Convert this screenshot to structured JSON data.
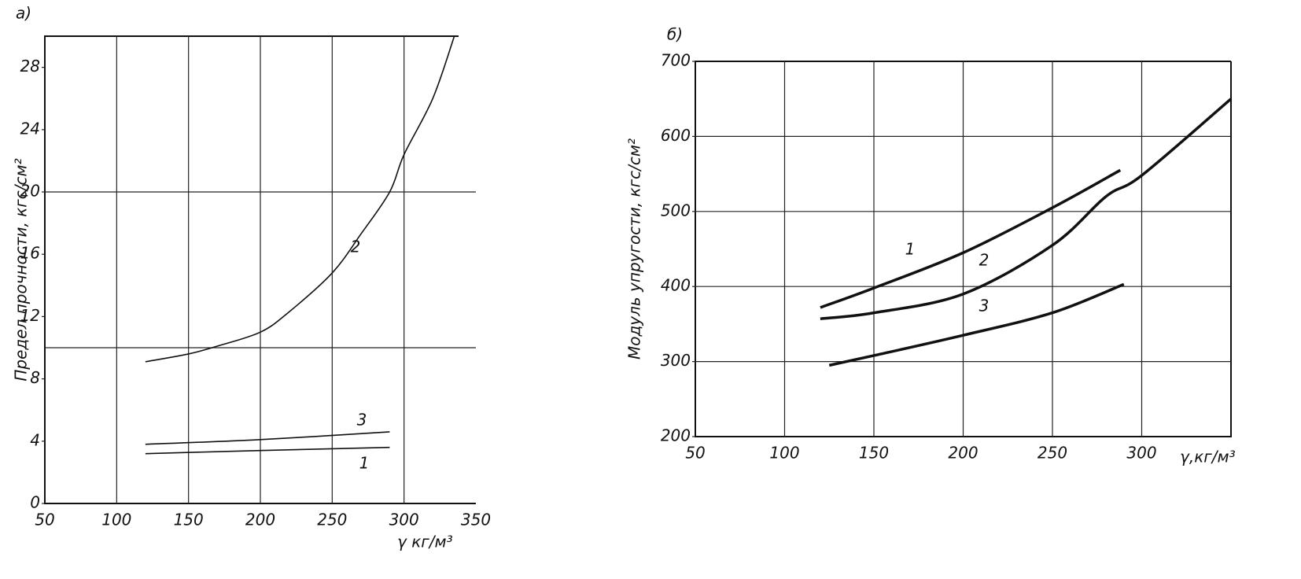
{
  "chart_data": [
    {
      "type": "line",
      "title": "а)",
      "ylabel": "Предел прочности, кгс/см²",
      "xlabel": "γ кг/м³",
      "xlim": [
        50,
        350
      ],
      "xticks": [
        50,
        100,
        150,
        200,
        250,
        300,
        350
      ],
      "ylim": [
        0,
        30
      ],
      "yticks": [
        0,
        4,
        8,
        12,
        16,
        20,
        24,
        28
      ],
      "ygrid": [
        10,
        20
      ],
      "line_width": 1.6,
      "series": [
        {
          "name": "1",
          "color": "#111111",
          "x": [
            120,
            200,
            290
          ],
          "values": [
            3.2,
            3.4,
            3.6
          ]
        },
        {
          "name": "2",
          "color": "#111111",
          "x": [
            120,
            150,
            170,
            200,
            220,
            250,
            270,
            290,
            300,
            320,
            335
          ],
          "values": [
            9.1,
            9.6,
            10.1,
            11,
            12.3,
            14.8,
            17.3,
            20,
            22.4,
            26,
            30
          ]
        },
        {
          "name": "3",
          "color": "#111111",
          "x": [
            120,
            200,
            290
          ],
          "values": [
            3.8,
            4.1,
            4.6
          ]
        }
      ]
    },
    {
      "type": "line",
      "title": "б)",
      "ylabel": "Модуль упругости, кгс/см²",
      "xlabel": "γ,кг/м³",
      "xlim": [
        50,
        350
      ],
      "xticks": [
        50,
        100,
        150,
        200,
        250,
        300
      ],
      "ylim": [
        200,
        700
      ],
      "yticks": [
        200,
        300,
        400,
        500,
        600,
        700
      ],
      "ygrid": [
        300,
        400,
        500,
        600
      ],
      "line_width": 3.5,
      "series": [
        {
          "name": "1",
          "color": "#111111",
          "x": [
            120,
            150,
            200,
            250,
            288
          ],
          "values": [
            372,
            398,
            445,
            505,
            555
          ]
        },
        {
          "name": "2",
          "color": "#111111",
          "x": [
            120,
            150,
            200,
            250,
            280,
            300,
            350
          ],
          "values": [
            357,
            365,
            390,
            455,
            520,
            548,
            650
          ]
        },
        {
          "name": "3",
          "color": "#111111",
          "x": [
            125,
            150,
            200,
            250,
            290
          ],
          "values": [
            295,
            308,
            335,
            365,
            403
          ]
        }
      ]
    }
  ]
}
